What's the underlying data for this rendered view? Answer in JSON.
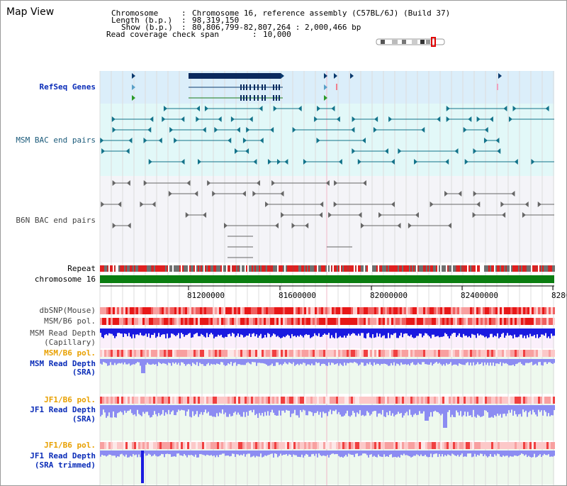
{
  "view_title": "Map View",
  "info": {
    "chromosome_label": "Chromosome",
    "chromosome_value": "Chromosome 16, reference assembly (C57BL/6J) (Build 37)",
    "length_label": "Length (b.p.)",
    "length_value": "98,319,150",
    "show_label": "Show (b.p.)",
    "show_value": "80,806,799-82,807,264 : 2,000,466 bp",
    "coverage_label": "Read coverage check span",
    "coverage_value": "10,000"
  },
  "tracks": {
    "refseq": "RefSeq Genes",
    "msm_bac": "MSM BAC end pairs",
    "b6n_bac": "B6N BAC end pairs",
    "repeat": "Repeat",
    "chromosome": "chromosome 16",
    "dbsnp": "dbSNP(Mouse)",
    "msm_b6_pol_1": "MSM/B6 pol.",
    "msm_depth_cap_1": "MSM Read Depth",
    "msm_depth_cap_2": "(Capillary)",
    "msm_b6_pol_2": "MSM/B6 pol.",
    "msm_depth_sra_1": "MSM Read Depth",
    "msm_depth_sra_2": "(SRA)",
    "jf1_pol_1": "JF1/B6 pol.",
    "jf1_depth_sra_1": "JF1 Read Depth",
    "jf1_depth_sra_2": "(SRA)",
    "jf1_pol_2": "JF1/B6 pol.",
    "jf1_trim_1": "JF1 Read Depth",
    "jf1_trim_2": "(SRA trimmed)"
  },
  "axis": {
    "ticks": [
      "81200000",
      "81600000",
      "82000000",
      "82400000",
      "8280"
    ]
  },
  "colors": {
    "refseq_bg": "#dbeefa",
    "msm_bg": "#e2f8f8",
    "b6n_bg": "#f4f4f8",
    "gene_block": "#0b2a5e",
    "chromosome_bar": "#0a7d10",
    "depth_dark": "#1a1ae0",
    "depth_light": "#8c8cf2"
  }
}
